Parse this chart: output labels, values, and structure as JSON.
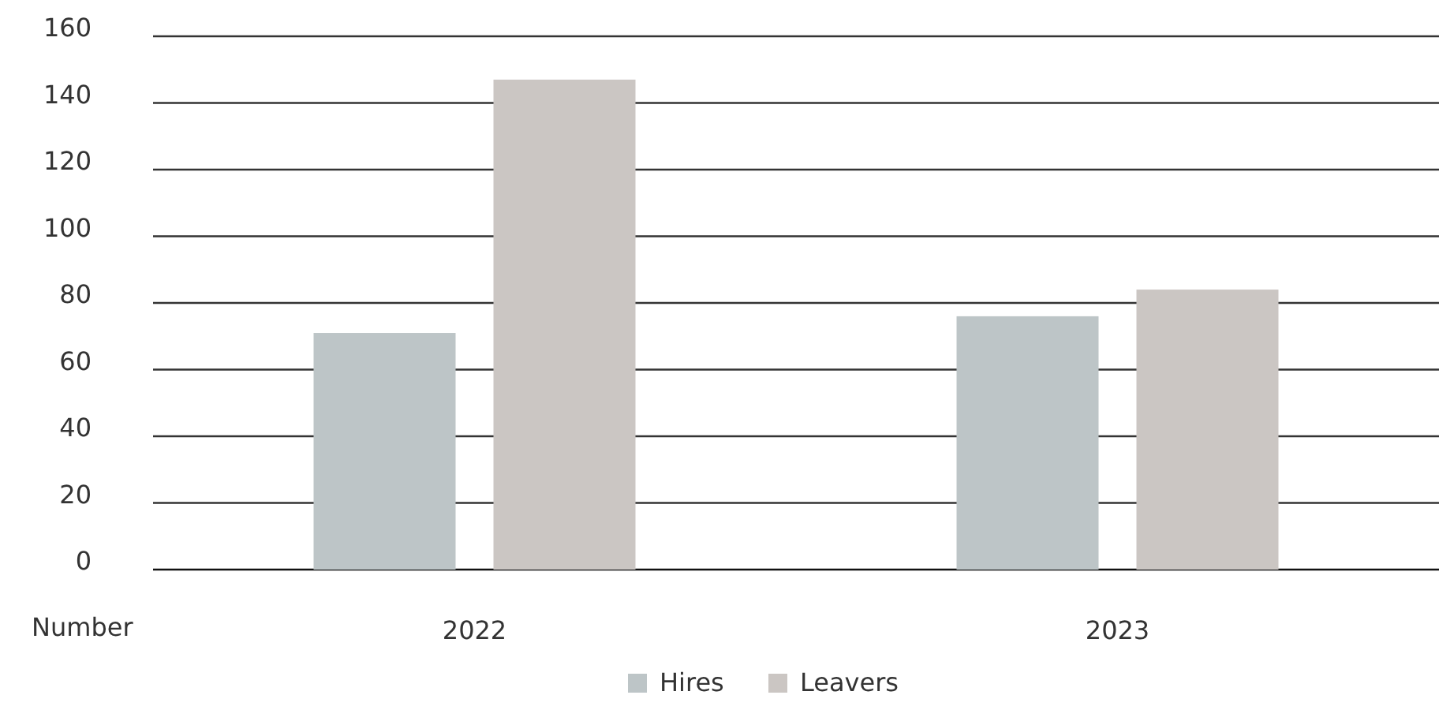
{
  "chart_data": {
    "type": "bar",
    "ylabel": "Number",
    "categories": [
      "2022",
      "2023"
    ],
    "series": [
      {
        "name": "Hires",
        "color": "#bdc5c7",
        "values": [
          71,
          76
        ]
      },
      {
        "name": "Leavers",
        "color": "#cbc6c3",
        "values": [
          147,
          84
        ]
      }
    ],
    "ylim": [
      0,
      160
    ],
    "yticks": [
      0,
      20,
      40,
      60,
      80,
      100,
      120,
      140,
      160
    ],
    "grid": "y",
    "legend": "bottom"
  }
}
